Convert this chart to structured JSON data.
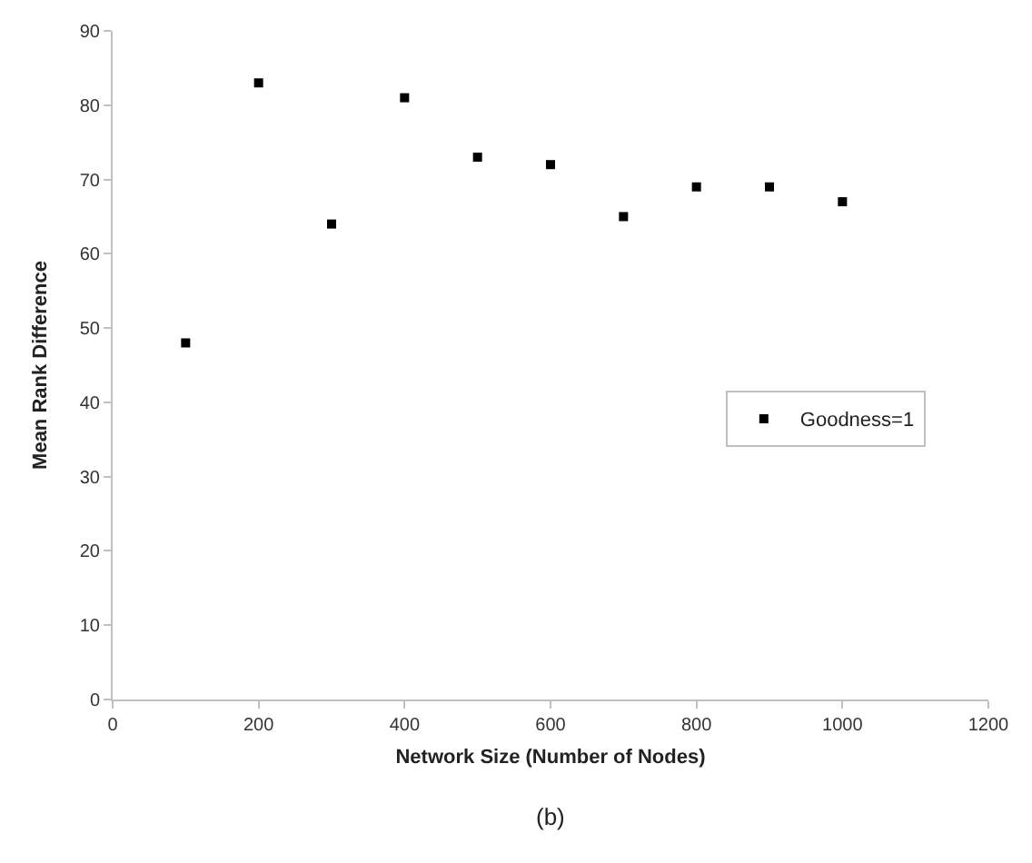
{
  "chart_data": {
    "type": "scatter",
    "xlabel": "Network Size (Number of Nodes)",
    "ylabel": "Mean Rank Difference",
    "x": [
      100,
      200,
      300,
      400,
      500,
      600,
      700,
      800,
      900,
      1000
    ],
    "series": [
      {
        "name": "Goodness=1",
        "color": "#000000",
        "values": [
          48,
          83,
          64,
          81,
          73,
          72,
          65,
          69,
          69,
          67
        ]
      }
    ],
    "xlim": [
      0,
      1200
    ],
    "xticks": [
      0,
      200,
      400,
      600,
      800,
      1000,
      1200
    ],
    "ylim": [
      0,
      90
    ],
    "yticks": [
      0,
      10,
      20,
      30,
      40,
      50,
      60,
      70,
      80,
      90
    ],
    "marker": "square",
    "legend": "right",
    "annotations": [
      "(b)"
    ]
  }
}
